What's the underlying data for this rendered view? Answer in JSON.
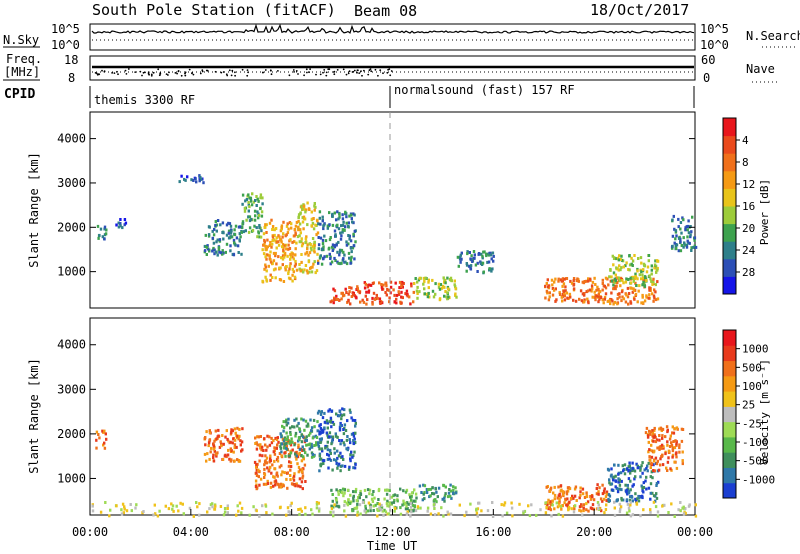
{
  "header": {
    "station": "South Pole Station (fitACF)",
    "beam": "Beam 08",
    "date": "18/Oct/2017"
  },
  "strips": {
    "nsky": {
      "label": "N.Sky",
      "ticks": [
        "10^5",
        "10^0"
      ]
    },
    "nsearch": {
      "label": "N.Search",
      "ticks": [
        "10^5",
        "10^0"
      ]
    },
    "freq": {
      "label1": "Freq.",
      "label2": "[MHz]",
      "ticks": [
        "18",
        "8"
      ]
    },
    "nave": {
      "label": "Nave",
      "ticks": [
        "60",
        "0"
      ]
    },
    "cpid": {
      "label": "CPID",
      "mode1": "themis 3300 RF",
      "mode2": "normalsound (fast) 157 RF"
    }
  },
  "chart_data": [
    {
      "type": "heatmap",
      "quantity": "Power",
      "ylabel": "Slant Range [km]",
      "xlabel": "Time UT",
      "x_ticks": [
        "00:00",
        "04:00",
        "08:00",
        "12:00",
        "16:00",
        "20:00",
        "00:00"
      ],
      "xlim_hours": [
        0,
        24
      ],
      "y_ticks": [
        1000,
        2000,
        3000,
        4000
      ],
      "ylim_km": [
        180,
        4600
      ],
      "colorbar": {
        "label": "Power [dB]",
        "ticks": [
          "4",
          "8",
          "12",
          "16",
          "20",
          "24",
          "28"
        ],
        "colors": [
          "#1515e8",
          "#2c4fb6",
          "#2e7f8a",
          "#3da24e",
          "#9dcc3a",
          "#e8c41a",
          "#f59a14",
          "#f0701b",
          "#ea4a1c",
          "#e8161c"
        ]
      },
      "regions": [
        {
          "t": [
            0.2,
            0.6
          ],
          "r": [
            1700,
            2100
          ],
          "level": 2
        },
        {
          "t": [
            1.0,
            1.4
          ],
          "r": [
            2000,
            2300
          ],
          "level": 1
        },
        {
          "t": [
            3.5,
            4.5
          ],
          "r": [
            3000,
            3200
          ],
          "level": 1
        },
        {
          "t": [
            4.5,
            6.0
          ],
          "r": [
            1400,
            2200
          ],
          "level": 2
        },
        {
          "t": [
            6.0,
            6.8
          ],
          "r": [
            1800,
            2800
          ],
          "level": 3
        },
        {
          "t": [
            6.8,
            8.2
          ],
          "r": [
            800,
            2200
          ],
          "level": 6
        },
        {
          "t": [
            8.2,
            9.0
          ],
          "r": [
            1000,
            2600
          ],
          "level": 5
        },
        {
          "t": [
            9.0,
            10.5
          ],
          "r": [
            1200,
            2400
          ],
          "level": 2
        },
        {
          "t": [
            9.5,
            10.8
          ],
          "r": [
            300,
            700
          ],
          "level": 8
        },
        {
          "t": [
            10.8,
            12.8
          ],
          "r": [
            300,
            800
          ],
          "level": 8
        },
        {
          "t": [
            12.8,
            14.5
          ],
          "r": [
            400,
            900
          ],
          "level": 4
        },
        {
          "t": [
            14.5,
            16.0
          ],
          "r": [
            1000,
            1500
          ],
          "level": 2
        },
        {
          "t": [
            18.0,
            22.5
          ],
          "r": [
            300,
            900
          ],
          "level": 7
        },
        {
          "t": [
            20.5,
            22.5
          ],
          "r": [
            700,
            1400
          ],
          "level": 4
        },
        {
          "t": [
            23.0,
            24.0
          ],
          "r": [
            1500,
            2300
          ],
          "level": 2
        }
      ]
    },
    {
      "type": "heatmap",
      "quantity": "Velocity",
      "ylabel": "Slant Range [km]",
      "xlabel": "Time UT",
      "x_ticks": [
        "00:00",
        "04:00",
        "08:00",
        "12:00",
        "16:00",
        "20:00",
        "00:00"
      ],
      "xlim_hours": [
        0,
        24
      ],
      "y_ticks": [
        1000,
        2000,
        3000,
        4000
      ],
      "ylim_km": [
        180,
        4600
      ],
      "colorbar": {
        "label": "Velocity [m s⁻¹]",
        "ticks": [
          "1000",
          "500",
          "100",
          "25",
          "-25",
          "-100",
          "-500",
          "-1000"
        ],
        "colors": [
          "#1b3fd1",
          "#2f78a8",
          "#3f8f5c",
          "#58b84a",
          "#9edb55",
          "#bdbdbd",
          "#f0c21a",
          "#f59a14",
          "#f0701b",
          "#e83a1c",
          "#e8161c"
        ]
      },
      "regions": [
        {
          "t": [
            0.2,
            0.6
          ],
          "r": [
            1700,
            2100
          ],
          "level": 8
        },
        {
          "t": [
            4.5,
            6.0
          ],
          "r": [
            1400,
            2200
          ],
          "level": 8
        },
        {
          "t": [
            6.5,
            8.5
          ],
          "r": [
            800,
            2000
          ],
          "level": 8
        },
        {
          "t": [
            7.5,
            9.0
          ],
          "r": [
            1500,
            2400
          ],
          "level": 2
        },
        {
          "t": [
            9.0,
            10.5
          ],
          "r": [
            1200,
            2600
          ],
          "level": 1
        },
        {
          "t": [
            9.5,
            13.0
          ],
          "r": [
            300,
            800
          ],
          "level": 3
        },
        {
          "t": [
            13.0,
            14.5
          ],
          "r": [
            500,
            900
          ],
          "level": 2
        },
        {
          "t": [
            18.0,
            20.5
          ],
          "r": [
            300,
            900
          ],
          "level": 8
        },
        {
          "t": [
            20.5,
            22.5
          ],
          "r": [
            500,
            1400
          ],
          "level": 1
        },
        {
          "t": [
            22.0,
            23.5
          ],
          "r": [
            1200,
            2200
          ],
          "level": 8
        },
        {
          "t": [
            0.0,
            24.0
          ],
          "r": [
            180,
            500
          ],
          "level": 5
        }
      ]
    }
  ]
}
